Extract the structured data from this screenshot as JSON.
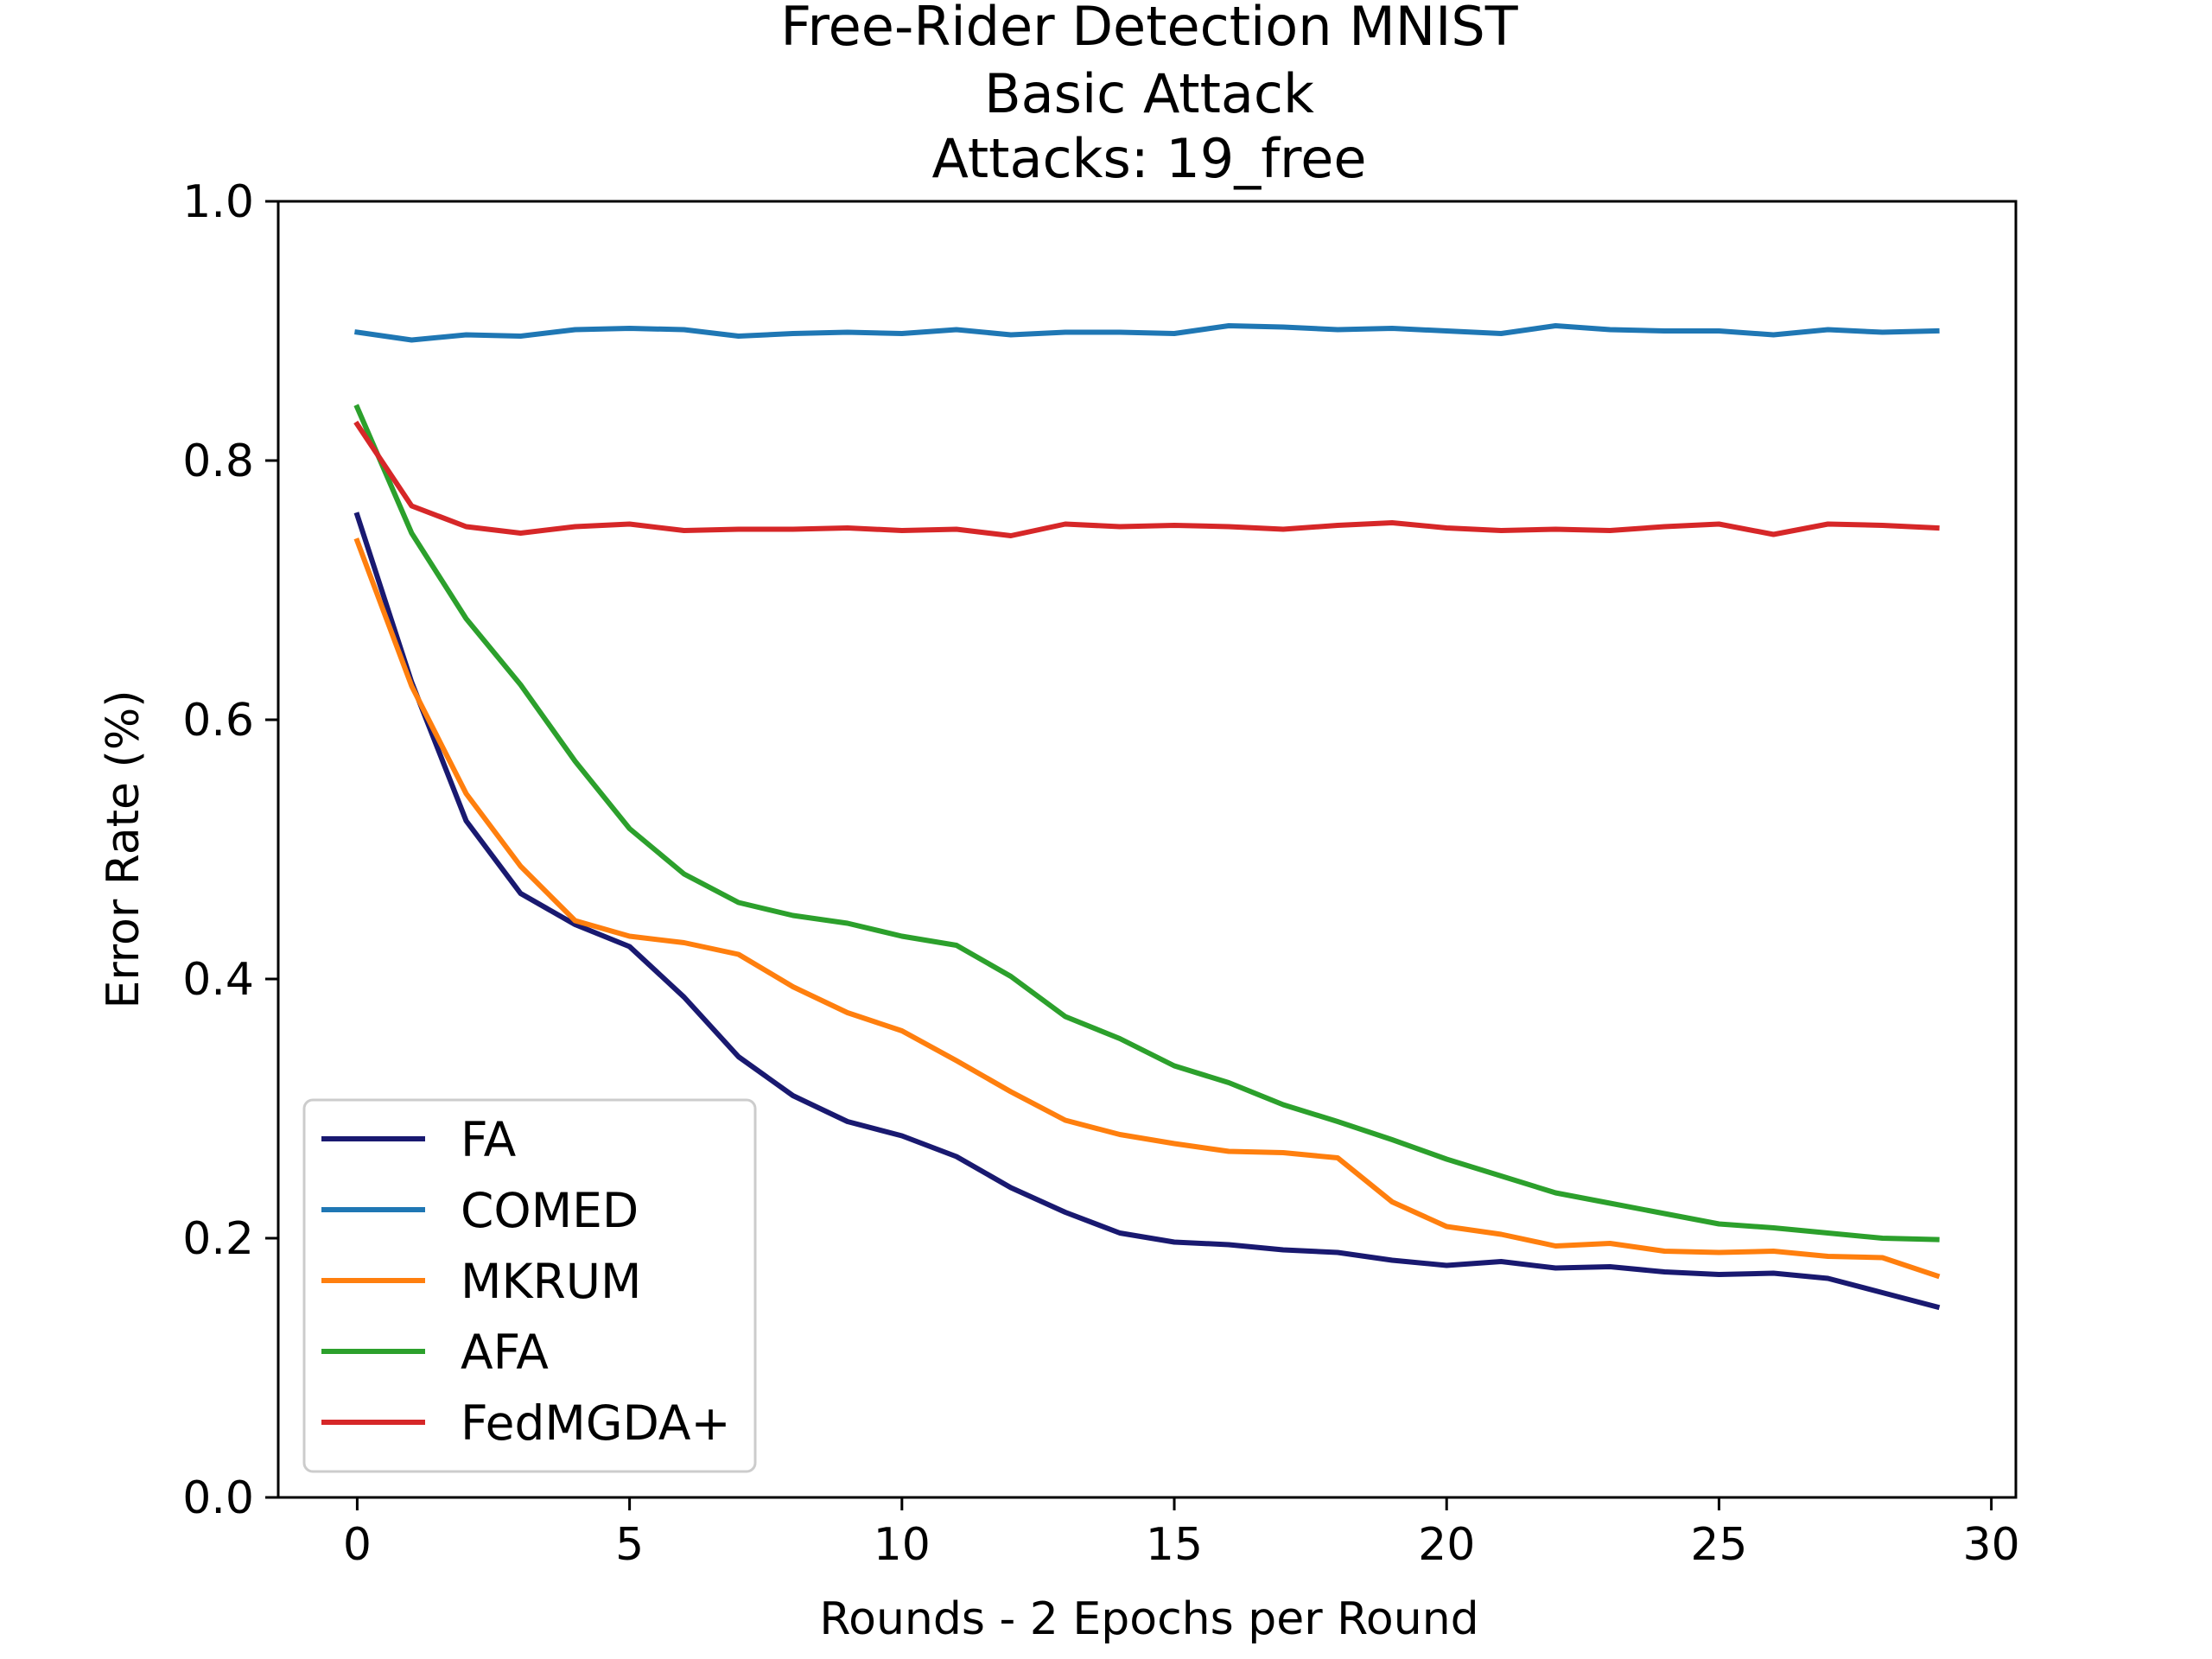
{
  "chart_data": {
    "type": "line",
    "title_lines": [
      "Free-Rider Detection MNIST",
      "Basic Attack",
      "Attacks: 19_free"
    ],
    "xlabel": "Rounds - 2 Epochs per Round",
    "ylabel": "Error Rate (%)",
    "xlim": [
      -1.45,
      30.45
    ],
    "ylim": [
      0,
      1.0
    ],
    "xticks": [
      0,
      5,
      10,
      15,
      20,
      25,
      30
    ],
    "yticks": [
      0.0,
      0.2,
      0.4,
      0.6,
      0.8,
      1.0
    ],
    "xtick_labels": [
      "0",
      "5",
      "10",
      "15",
      "20",
      "25",
      "30"
    ],
    "ytick_labels": [
      "0.0",
      "0.2",
      "0.4",
      "0.6",
      "0.8",
      "1.0"
    ],
    "grid": false,
    "legend_position": "lower-left",
    "x": [
      0,
      1,
      2,
      3,
      4,
      5,
      6,
      7,
      8,
      9,
      10,
      11,
      12,
      13,
      14,
      15,
      16,
      17,
      18,
      19,
      20,
      21,
      22,
      23,
      24,
      25,
      26,
      27,
      28,
      29
    ],
    "series": [
      {
        "name": "FA",
        "color": "#191970",
        "values": [
          0.758,
          0.629,
          0.522,
          0.466,
          0.442,
          0.425,
          0.386,
          0.34,
          0.31,
          0.29,
          0.279,
          0.263,
          0.239,
          0.22,
          0.204,
          0.197,
          0.195,
          0.191,
          0.189,
          0.183,
          0.179,
          0.182,
          0.177,
          0.178,
          0.174,
          0.172,
          0.173,
          0.169,
          0.158,
          0.147
        ]
      },
      {
        "name": "COMED",
        "color": "#1f77b4",
        "values": [
          0.899,
          0.893,
          0.897,
          0.896,
          0.901,
          0.902,
          0.901,
          0.896,
          0.898,
          0.899,
          0.898,
          0.901,
          0.897,
          0.899,
          0.899,
          0.898,
          0.904,
          0.903,
          0.901,
          0.902,
          0.9,
          0.898,
          0.904,
          0.901,
          0.9,
          0.9,
          0.897,
          0.901,
          0.899,
          0.9
        ]
      },
      {
        "name": "MKRUM",
        "color": "#ff7f0e",
        "values": [
          0.738,
          0.626,
          0.543,
          0.487,
          0.445,
          0.433,
          0.428,
          0.419,
          0.394,
          0.374,
          0.36,
          0.337,
          0.313,
          0.291,
          0.28,
          0.273,
          0.267,
          0.266,
          0.262,
          0.228,
          0.209,
          0.203,
          0.194,
          0.196,
          0.19,
          0.189,
          0.19,
          0.186,
          0.185,
          0.171
        ]
      },
      {
        "name": "AFA",
        "color": "#2ca02c",
        "values": [
          0.841,
          0.744,
          0.678,
          0.627,
          0.568,
          0.516,
          0.481,
          0.459,
          0.449,
          0.443,
          0.433,
          0.426,
          0.402,
          0.371,
          0.354,
          0.333,
          0.32,
          0.303,
          0.29,
          0.276,
          0.261,
          0.248,
          0.235,
          0.227,
          0.219,
          0.211,
          0.208,
          0.204,
          0.2,
          0.199
        ]
      },
      {
        "name": "FedMGDA+",
        "color": "#d62728",
        "values": [
          0.828,
          0.765,
          0.749,
          0.744,
          0.749,
          0.751,
          0.746,
          0.747,
          0.747,
          0.748,
          0.746,
          0.747,
          0.742,
          0.751,
          0.749,
          0.75,
          0.749,
          0.747,
          0.75,
          0.752,
          0.748,
          0.746,
          0.747,
          0.746,
          0.749,
          0.751,
          0.743,
          0.751,
          0.75,
          0.748
        ]
      }
    ]
  }
}
